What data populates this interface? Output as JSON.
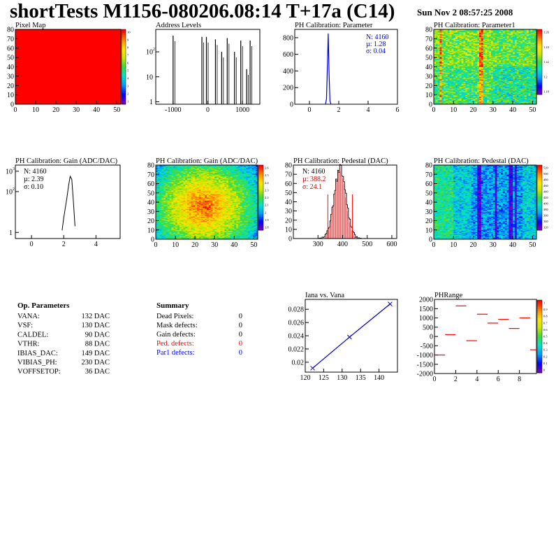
{
  "header": {
    "title": "shortTests M1156-080206.08:14 T+17a (C14)",
    "date": "Sun Nov  2 08:57:25 2008"
  },
  "chart_data": [
    {
      "id": "pixelmap",
      "type": "heatmap",
      "title": "Pixel Map",
      "xlim": [
        0,
        52
      ],
      "ylim": [
        0,
        80
      ],
      "xticks": [
        "0",
        "10",
        "20",
        "30",
        "40",
        "50"
      ],
      "yticks": [
        "0",
        "10",
        "20",
        "30",
        "40",
        "50",
        "60",
        "70",
        "80"
      ],
      "fill_value": 10,
      "zlim": [
        0,
        10
      ],
      "zticks": [
        "1",
        "2",
        "3",
        "4",
        "5",
        "6",
        "7",
        "8",
        "9",
        "10"
      ]
    },
    {
      "id": "address",
      "type": "bar",
      "title": "Address Levels",
      "xlim": [
        -1500,
        1500
      ],
      "xticks": [
        "-1000",
        "0",
        "1000"
      ],
      "ylog": true,
      "yticks": [
        "10",
        "10",
        "1"
      ],
      "ytick_exp": [
        "",
        "2",
        ""
      ],
      "peaks": [
        {
          "x": -1000,
          "log10y": 2.65
        },
        {
          "x": -170,
          "log10y": 2.6
        },
        {
          "x": -40,
          "log10y": 2.6
        },
        {
          "x": 220,
          "log10y": 2.5
        },
        {
          "x": 400,
          "log10y": 2.0
        },
        {
          "x": 560,
          "log10y": 2.55
        },
        {
          "x": 770,
          "log10y": 2.0
        },
        {
          "x": 950,
          "log10y": 2.45
        },
        {
          "x": 1120,
          "log10y": 1.3
        },
        {
          "x": 1220,
          "log10y": 2.45
        }
      ]
    },
    {
      "id": "phparam",
      "type": "bar",
      "title": "PH Calibration: Parameter",
      "xlim": [
        -1,
        6
      ],
      "ylim": [
        0,
        900
      ],
      "xticks": [
        "0",
        "2",
        "4",
        "6"
      ],
      "yticks": [
        "0",
        "200",
        "400",
        "600",
        "800"
      ],
      "x": [
        1.1,
        1.16,
        1.22,
        1.28,
        1.34,
        1.4,
        1.46
      ],
      "values": [
        5,
        60,
        420,
        850,
        380,
        40,
        3
      ],
      "stats": [
        "N: 4160",
        "µ: 1.28",
        "σ: 0.04"
      ]
    },
    {
      "id": "param1",
      "type": "heatmap",
      "title": "PH Calibration: Parameter1",
      "xlim": [
        0,
        52
      ],
      "ylim": [
        0,
        80
      ],
      "xticks": [
        "0",
        "10",
        "20",
        "30",
        "40",
        "50"
      ],
      "yticks": [
        "0",
        "10",
        "20",
        "30",
        "40",
        "50",
        "60",
        "70",
        "80"
      ],
      "zticks": [
        "1.26",
        "1.24",
        "1.22",
        "1.2",
        "1.18"
      ],
      "hot_columns": [
        3,
        23,
        24
      ]
    },
    {
      "id": "gain1d",
      "type": "bar",
      "title": "PH Calibration: Gain (ADC/DAC)",
      "xlim": [
        -1,
        5.5
      ],
      "xticks": [
        "0",
        "2",
        "4"
      ],
      "ylog": true,
      "yticks": [
        "10",
        "10",
        "1"
      ],
      "ytick_exp": [
        "3",
        "2",
        ""
      ],
      "x": [
        1.9,
        2.0,
        2.1,
        2.2,
        2.3,
        2.4,
        2.5,
        2.6,
        2.7
      ],
      "log10_values": [
        0.1,
        0.7,
        1.2,
        1.7,
        2.3,
        2.75,
        2.6,
        1.5,
        0.3
      ],
      "stats": [
        "N: 4160",
        "µ: 2.39",
        "σ: 0.10"
      ]
    },
    {
      "id": "gain2d",
      "type": "heatmap",
      "title": "PH Calibration: Gain (ADC/DAC)",
      "xlim": [
        0,
        52
      ],
      "ylim": [
        0,
        80
      ],
      "xticks": [
        "0",
        "10",
        "20",
        "30",
        "40",
        "50"
      ],
      "yticks": [
        "0",
        "10",
        "20",
        "30",
        "40",
        "50",
        "60",
        "70",
        "80"
      ],
      "zticks": [
        "2.6",
        "2.5",
        "2.4",
        "2.3",
        "2.2",
        "2.1",
        "2",
        "1.9",
        "1.8"
      ],
      "hot_center": [
        24,
        35
      ]
    },
    {
      "id": "pedestal1d",
      "type": "bar",
      "title": "PH Calibration: Pedestal (DAC)",
      "xlim": [
        200,
        620
      ],
      "ylim": [
        0,
        80
      ],
      "xticks": [
        "300",
        "400",
        "500",
        "600"
      ],
      "yticks": [
        "0",
        "10",
        "20",
        "30",
        "40",
        "50",
        "60",
        "70",
        "80"
      ],
      "mean": 388.2,
      "sigma": 24.1,
      "peak": 76,
      "cut_lines": [
        340,
        440
      ],
      "stats": [
        "N: 4160",
        "µ: 388.2",
        "σ: 24.1"
      ]
    },
    {
      "id": "pedestal2d",
      "type": "heatmap",
      "title": "PH Calibration: Pedestal (DAC)",
      "xlim": [
        0,
        52
      ],
      "ylim": [
        0,
        80
      ],
      "xticks": [
        "0",
        "10",
        "20",
        "30",
        "40",
        "50"
      ],
      "yticks": [
        "0",
        "10",
        "20",
        "30",
        "40",
        "50",
        "60",
        "70",
        "80"
      ],
      "zticks": [
        "520",
        "500",
        "480",
        "460",
        "440",
        "420",
        "400",
        "380",
        "360",
        "340",
        "320"
      ],
      "cold_columns": [
        22,
        23,
        31,
        38,
        39,
        41
      ]
    },
    {
      "id": "ianavana",
      "type": "line",
      "title": "Iana vs. Vana",
      "xlim": [
        120,
        145
      ],
      "ylim": [
        0.0185,
        0.0295
      ],
      "xticks": [
        "120",
        "125",
        "130",
        "135",
        "140"
      ],
      "yticks": [
        "0.02",
        "0.022",
        "0.024",
        "0.026",
        "0.028"
      ],
      "x": [
        122,
        132,
        143
      ],
      "y": [
        0.0191,
        0.0238,
        0.0288
      ]
    },
    {
      "id": "phrange",
      "type": "scatter",
      "title": "PHRange",
      "xlim": [
        0,
        9.6
      ],
      "ylim": [
        -2000,
        2000
      ],
      "xticks": [
        "0",
        "2",
        "4",
        "6",
        "8"
      ],
      "yticks": [
        "2000",
        "1500",
        "1000",
        "500",
        "0",
        "-500",
        "-1000",
        "-1500",
        "-2000"
      ],
      "zticks": [
        "1",
        "0.9",
        "0.8",
        "0.7",
        "0.6",
        "0.5",
        "0.4",
        "0.3",
        "0.2",
        "0.1",
        "0"
      ],
      "x": [
        0,
        1,
        2,
        3,
        4,
        5,
        6,
        7,
        8,
        9
      ],
      "y": [
        -1000,
        100,
        1650,
        -230,
        1200,
        720,
        920,
        430,
        1000,
        -720
      ]
    }
  ],
  "op_parameters": {
    "heading": "Op. Parameters",
    "rows": [
      {
        "name": "VANA:",
        "value": "132 DAC"
      },
      {
        "name": "VSF:",
        "value": "130 DAC"
      },
      {
        "name": "CALDEL:",
        "value": "90 DAC"
      },
      {
        "name": "VTHR:",
        "value": "88 DAC"
      },
      {
        "name": "IBIAS_DAC:",
        "value": "149 DAC"
      },
      {
        "name": "VIBIAS_PH:",
        "value": "230 DAC"
      },
      {
        "name": "VOFFSETOP:",
        "value": "36 DAC"
      }
    ]
  },
  "summary": {
    "heading": "Summary",
    "rows": [
      {
        "name": "Dead Pixels:",
        "value": "0",
        "color": "#000000"
      },
      {
        "name": "Mask defects:",
        "value": "0",
        "color": "#000000"
      },
      {
        "name": "Gain defects:",
        "value": "0",
        "color": "#000000"
      },
      {
        "name": "Ped. defects:",
        "value": "0",
        "color": "#ff0000"
      },
      {
        "name": "Par1 defects:",
        "value": "0",
        "color": "#0000ff"
      }
    ]
  }
}
